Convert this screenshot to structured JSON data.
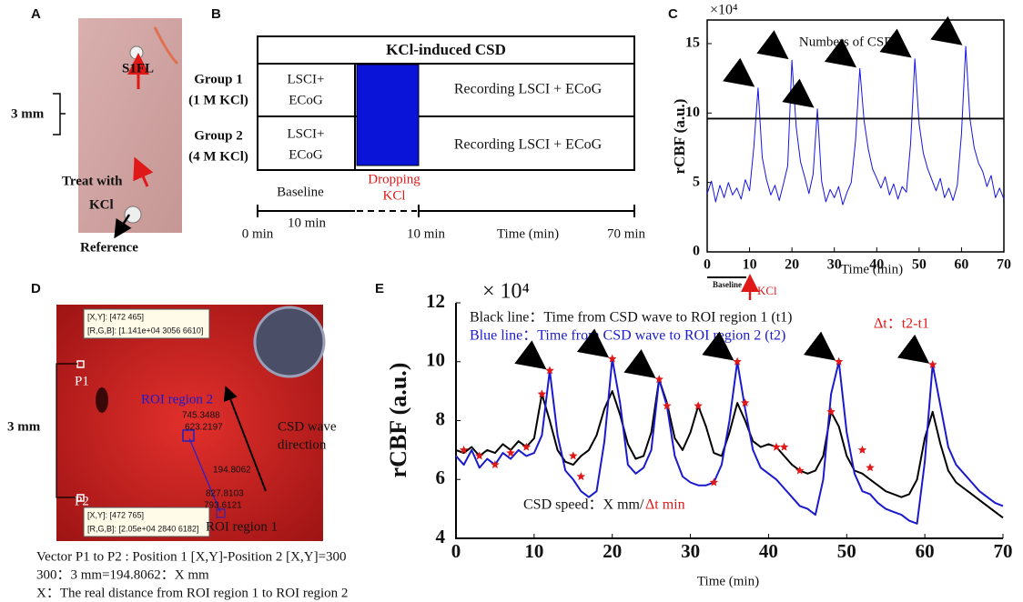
{
  "chart_data": [
    {
      "type": "line",
      "panel_label": "C",
      "y_multiplier": "×10⁴",
      "y_label": "rCBF (a.u.)",
      "x_label": "Time (min)",
      "annotation": "Numbers of CSD",
      "baseline_label": "Baseline",
      "kcl_label": "KCl",
      "color": "#1414e6",
      "threshold": 9.6,
      "x": [
        0,
        1,
        2,
        3,
        4,
        5,
        6,
        7,
        8,
        9,
        10,
        11,
        12,
        13,
        14,
        15,
        16,
        17,
        18,
        19,
        20,
        21,
        22,
        23,
        24,
        25,
        26,
        27,
        28,
        29,
        30,
        31,
        32,
        33,
        34,
        35,
        36,
        37,
        38,
        39,
        40,
        41,
        42,
        43,
        44,
        45,
        46,
        47,
        48,
        49,
        50,
        51,
        52,
        53,
        54,
        55,
        56,
        57,
        58,
        59,
        60,
        61,
        62,
        63,
        64,
        65,
        66,
        67,
        68,
        69,
        70
      ],
      "values": [
        4.2,
        5.1,
        3.6,
        4.8,
        3.9,
        5.0,
        4.1,
        4.6,
        3.8,
        5.2,
        4.4,
        7.5,
        11.8,
        6.8,
        5.2,
        4.1,
        4.8,
        3.7,
        4.9,
        6.2,
        13.8,
        9.0,
        6.5,
        5.4,
        4.2,
        5.6,
        10.3,
        5.1,
        3.6,
        4.5,
        3.9,
        4.7,
        3.4,
        4.3,
        5.0,
        8.0,
        13.2,
        9.5,
        7.4,
        6.0,
        5.3,
        4.6,
        5.4,
        4.1,
        4.9,
        3.8,
        4.7,
        4.3,
        7.8,
        13.9,
        9.2,
        7.1,
        6.0,
        5.2,
        4.4,
        5.3,
        3.9,
        4.6,
        3.7,
        4.8,
        8.5,
        14.8,
        9.6,
        7.5,
        6.4,
        5.8,
        4.7,
        5.5,
        3.9,
        4.6,
        3.8
      ],
      "xlim": [
        0,
        70
      ],
      "ylim": [
        0,
        16.7
      ],
      "xticks": [
        0,
        10,
        20,
        30,
        40,
        50,
        60,
        70
      ],
      "yticks": [
        0,
        5,
        10,
        15
      ]
    },
    {
      "type": "line",
      "panel_label": "E",
      "y_multiplier": "× 10⁴",
      "y_label": "rCBF (a.u.)",
      "x_label": "Time (min)",
      "annotations": {
        "black_line": "Black line：Time from CSD wave to ROI region 1 (t1)",
        "blue_line": "Blue line：Time from CSD wave to ROI region 2 (t2)",
        "delta_t": "Δt：t2-t1",
        "speed": "CSD speed：X mm/",
        "speed_unit": "Δt min"
      },
      "x": [
        0,
        1,
        2,
        3,
        4,
        5,
        6,
        7,
        8,
        9,
        10,
        11,
        12,
        13,
        14,
        15,
        16,
        17,
        18,
        19,
        20,
        21,
        22,
        23,
        24,
        25,
        26,
        27,
        28,
        29,
        30,
        31,
        32,
        33,
        34,
        35,
        36,
        37,
        38,
        39,
        40,
        41,
        42,
        43,
        44,
        45,
        46,
        47,
        48,
        49,
        50,
        51,
        52,
        53,
        54,
        55,
        56,
        57,
        58,
        59,
        60,
        61,
        62,
        63,
        64,
        65,
        66,
        67,
        68,
        69,
        70
      ],
      "series": [
        {
          "color": "#000000",
          "values": [
            7.0,
            6.9,
            7.1,
            6.8,
            7.0,
            6.9,
            7.2,
            7.0,
            7.3,
            7.1,
            7.4,
            8.9,
            8.0,
            7.0,
            6.6,
            6.5,
            6.8,
            7.0,
            7.5,
            8.4,
            9.0,
            8.2,
            7.2,
            6.7,
            6.8,
            7.6,
            9.4,
            8.6,
            7.4,
            7.0,
            7.6,
            8.5,
            7.8,
            6.9,
            6.8,
            7.6,
            8.6,
            8.0,
            7.3,
            7.1,
            7.2,
            7.1,
            6.8,
            6.5,
            6.3,
            6.2,
            6.3,
            6.8,
            8.3,
            7.8,
            6.8,
            6.3,
            6.2,
            6.0,
            5.8,
            5.6,
            5.5,
            5.4,
            5.5,
            6.0,
            7.4,
            8.3,
            7.2,
            6.3,
            5.9,
            5.7,
            5.5,
            5.3,
            5.1,
            4.9,
            4.7
          ]
        },
        {
          "color": "#1a1acc",
          "values": [
            6.8,
            6.5,
            7.0,
            6.4,
            6.7,
            6.5,
            6.9,
            6.7,
            7.0,
            6.8,
            6.9,
            7.5,
            9.7,
            7.5,
            6.3,
            6.0,
            5.6,
            5.4,
            5.6,
            7.3,
            10.1,
            8.6,
            6.5,
            6.2,
            6.4,
            7.0,
            9.4,
            8.5,
            6.8,
            6.1,
            5.9,
            5.8,
            5.8,
            5.9,
            6.5,
            8.0,
            10.0,
            8.4,
            7.0,
            6.4,
            6.2,
            6.0,
            5.7,
            5.4,
            5.1,
            5.0,
            4.8,
            6.0,
            8.9,
            10.0,
            7.6,
            6.2,
            5.6,
            5.5,
            5.2,
            5.0,
            4.9,
            4.8,
            4.6,
            4.5,
            6.6,
            9.9,
            8.5,
            7.1,
            6.5,
            6.2,
            5.9,
            5.6,
            5.4,
            5.2,
            5.1
          ]
        }
      ],
      "markers": {
        "color": "#e01818",
        "x": [
          1,
          3,
          5,
          7,
          9,
          11,
          12,
          15,
          16,
          20,
          26,
          27,
          31,
          33,
          36,
          37,
          41,
          42,
          44,
          48,
          49,
          52,
          53,
          61
        ],
        "y": [
          7.0,
          6.8,
          6.5,
          6.9,
          7.1,
          8.9,
          9.7,
          6.8,
          6.1,
          10.1,
          9.4,
          8.5,
          8.5,
          5.9,
          10.0,
          8.6,
          7.1,
          7.1,
          6.3,
          8.3,
          10.0,
          7.0,
          6.4,
          9.9
        ]
      },
      "xlim": [
        0,
        70
      ],
      "ylim": [
        4,
        12
      ],
      "xticks": [
        0,
        10,
        20,
        30,
        40,
        50,
        60,
        70
      ],
      "yticks": [
        4,
        6,
        8,
        10,
        12
      ]
    }
  ],
  "panel_a": {
    "label": "A",
    "site": "S1FL",
    "scale": "3 mm",
    "treat": [
      "Treat with",
      "KCl"
    ],
    "reference": "Reference"
  },
  "panel_b": {
    "label": "B",
    "header": "KCl-induced CSD",
    "groups": [
      {
        "name": "Group 1",
        "dose": "(1 M KCl)",
        "baseline": [
          "LSCI+",
          "ECoG"
        ],
        "recording": "Recording  LSCI + ECoG"
      },
      {
        "name": "Group 2",
        "dose": "(4 M KCl)",
        "baseline": [
          "LSCI+",
          "ECoG"
        ],
        "recording": "Recording  LSCI + ECoG"
      }
    ],
    "baseline": "Baseline",
    "dropping": [
      "Dropping",
      "KCl"
    ],
    "duration": "10 min",
    "timeline": [
      "0 min",
      "10 min",
      "Time (min)",
      "70 min"
    ]
  },
  "panel_d": {
    "label": "D",
    "tip1": [
      "[X,Y]: [472 465]",
      "[R,G,B]: [1.141e+04 3056 6610]"
    ],
    "tip2": [
      "[X,Y]: [472 765]",
      "[R,G,B]: [2.05e+04 2840 6182]"
    ],
    "p1": "P1",
    "p2": "P2",
    "scale": "3 mm",
    "roi2": "ROI region 2",
    "roi1": "ROI region 1",
    "roi2_coords": [
      "745.3488",
      "623.2197"
    ],
    "distance": "194.8062",
    "roi1_coords": [
      "827.8103",
      "793.6121"
    ],
    "wave": [
      "CSD wave",
      "direction"
    ],
    "caption": [
      "Vector P1 to P2 : Position 1 [X,Y]-Position 2 [X,Y]=300",
      "300：3 mm=194.8062：X mm",
      "X：The real distance from ROI region 1 to ROI region 2"
    ]
  }
}
